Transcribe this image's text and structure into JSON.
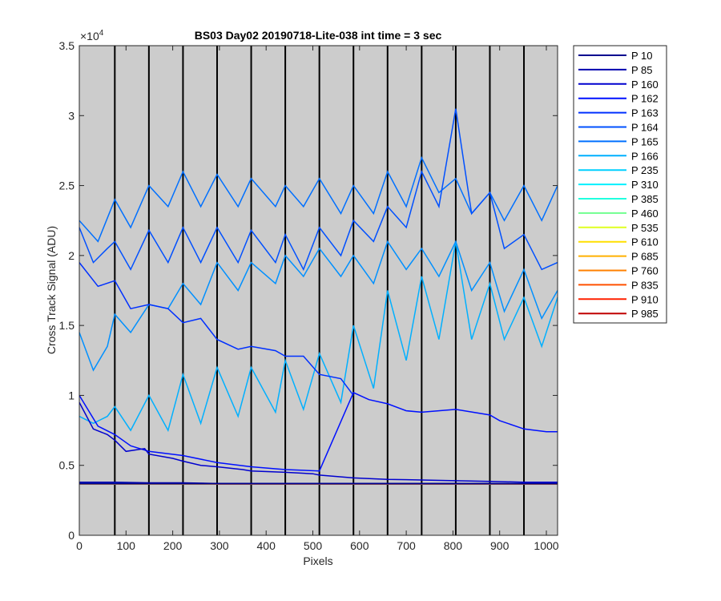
{
  "chart_data": {
    "type": "line",
    "title": "BS03 Day02 20190718-Lite-038 int time = 3 sec",
    "xlabel": "Pixels",
    "ylabel": "Cross Track Signal (ADU)",
    "y_exponent_label": "×10",
    "y_exponent_power": "4",
    "xlim": [
      0,
      1024
    ],
    "ylim": [
      0,
      35000
    ],
    "x_ticks": [
      0,
      100,
      200,
      300,
      400,
      500,
      600,
      700,
      800,
      900,
      1000
    ],
    "x_tick_labels": [
      "0",
      "100",
      "200",
      "300",
      "400",
      "500",
      "600",
      "700",
      "800",
      "900",
      "1000"
    ],
    "y_ticks": [
      0,
      5000,
      10000,
      15000,
      20000,
      25000,
      30000,
      35000
    ],
    "y_tick_labels": [
      "0",
      "0.5",
      "1",
      "1.5",
      "2",
      "2.5",
      "3",
      "3.5"
    ],
    "grid": false,
    "background_color": "#cccccc",
    "segment_boundaries": [
      0,
      76,
      149,
      222,
      295,
      368,
      441,
      514,
      587,
      660,
      733,
      806,
      879,
      952,
      1024
    ],
    "legend_position": "outside-right",
    "series": [
      {
        "name": "P 10",
        "color": "#00008f",
        "level": "baseline",
        "values": [
          [
            0,
            3700
          ],
          [
            1024,
            3700
          ]
        ]
      },
      {
        "name": "P 85",
        "color": "#0000af",
        "values": [
          [
            0,
            3800
          ],
          [
            76,
            3800
          ],
          [
            149,
            3750
          ],
          [
            222,
            3750
          ],
          [
            295,
            3700
          ],
          [
            368,
            3700
          ],
          [
            441,
            3700
          ],
          [
            514,
            3700
          ],
          [
            587,
            3700
          ],
          [
            660,
            3700
          ],
          [
            733,
            3700
          ],
          [
            806,
            3700
          ],
          [
            879,
            3700
          ],
          [
            952,
            3700
          ],
          [
            1024,
            3700
          ]
        ]
      },
      {
        "name": "P 160",
        "color": "#0000cf",
        "values": [
          [
            0,
            9500
          ],
          [
            30,
            7600
          ],
          [
            60,
            7200
          ],
          [
            76,
            6800
          ],
          [
            100,
            6000
          ],
          [
            140,
            6200
          ],
          [
            149,
            5800
          ],
          [
            200,
            5500
          ],
          [
            222,
            5300
          ],
          [
            260,
            5000
          ],
          [
            295,
            4900
          ],
          [
            350,
            4700
          ],
          [
            368,
            4600
          ],
          [
            441,
            4500
          ],
          [
            500,
            4400
          ],
          [
            514,
            4300
          ],
          [
            587,
            4100
          ],
          [
            660,
            4000
          ],
          [
            733,
            3950
          ],
          [
            806,
            3900
          ],
          [
            879,
            3850
          ],
          [
            952,
            3800
          ],
          [
            1024,
            3800
          ]
        ]
      },
      {
        "name": "P 162",
        "color": "#0010ff",
        "values": [
          [
            0,
            10000
          ],
          [
            40,
            7800
          ],
          [
            76,
            7200
          ],
          [
            110,
            6400
          ],
          [
            149,
            6000
          ],
          [
            222,
            5700
          ],
          [
            295,
            5200
          ],
          [
            368,
            4900
          ],
          [
            441,
            4700
          ],
          [
            514,
            4600
          ],
          [
            587,
            10200
          ],
          [
            620,
            9700
          ],
          [
            660,
            9400
          ],
          [
            700,
            8900
          ],
          [
            733,
            8800
          ],
          [
            806,
            9000
          ],
          [
            879,
            8600
          ],
          [
            900,
            8200
          ],
          [
            952,
            7600
          ],
          [
            1000,
            7400
          ],
          [
            1024,
            7400
          ]
        ]
      },
      {
        "name": "P 163",
        "color": "#0030ff",
        "values": [
          [
            0,
            19500
          ],
          [
            40,
            17800
          ],
          [
            76,
            18200
          ],
          [
            110,
            16200
          ],
          [
            149,
            16500
          ],
          [
            190,
            16200
          ],
          [
            222,
            15200
          ],
          [
            260,
            15500
          ],
          [
            295,
            14000
          ],
          [
            340,
            13300
          ],
          [
            368,
            13500
          ],
          [
            420,
            13200
          ],
          [
            441,
            12800
          ],
          [
            480,
            12800
          ],
          [
            514,
            11500
          ],
          [
            560,
            11200
          ],
          [
            587,
            10000
          ]
        ]
      },
      {
        "name": "P 164",
        "color": "#0050ff",
        "values": [
          [
            0,
            22000
          ],
          [
            30,
            19500
          ],
          [
            60,
            20500
          ],
          [
            76,
            21000
          ],
          [
            110,
            19000
          ],
          [
            149,
            21800
          ],
          [
            190,
            19500
          ],
          [
            222,
            22000
          ],
          [
            260,
            19500
          ],
          [
            295,
            22000
          ],
          [
            340,
            19500
          ],
          [
            368,
            21800
          ],
          [
            420,
            19500
          ],
          [
            441,
            21500
          ],
          [
            480,
            19000
          ],
          [
            514,
            22000
          ],
          [
            560,
            20000
          ],
          [
            587,
            22500
          ],
          [
            630,
            21000
          ],
          [
            660,
            23500
          ],
          [
            700,
            22000
          ],
          [
            733,
            26000
          ],
          [
            770,
            23500
          ],
          [
            806,
            30500
          ],
          [
            840,
            23000
          ],
          [
            879,
            24500
          ],
          [
            910,
            20500
          ],
          [
            952,
            21500
          ],
          [
            990,
            19000
          ],
          [
            1024,
            19500
          ]
        ]
      },
      {
        "name": "P 165",
        "color": "#0070ff",
        "values": [
          [
            0,
            22500
          ],
          [
            40,
            21000
          ],
          [
            76,
            24000
          ],
          [
            110,
            22000
          ],
          [
            149,
            25000
          ],
          [
            190,
            23500
          ],
          [
            222,
            26000
          ],
          [
            260,
            23500
          ],
          [
            295,
            25800
          ],
          [
            340,
            23500
          ],
          [
            368,
            25500
          ],
          [
            420,
            23500
          ],
          [
            441,
            25000
          ],
          [
            480,
            23500
          ],
          [
            514,
            25500
          ],
          [
            560,
            23000
          ],
          [
            587,
            25000
          ],
          [
            630,
            23000
          ],
          [
            660,
            26000
          ],
          [
            700,
            23500
          ],
          [
            733,
            27000
          ],
          [
            770,
            24500
          ],
          [
            806,
            25500
          ],
          [
            840,
            23000
          ],
          [
            879,
            24500
          ],
          [
            910,
            22500
          ],
          [
            952,
            25000
          ],
          [
            990,
            22500
          ],
          [
            1024,
            25000
          ]
        ]
      },
      {
        "name": "P 166",
        "color": "#0090ff",
        "values": [
          [
            0,
            14500
          ],
          [
            30,
            11800
          ],
          [
            60,
            13500
          ],
          [
            76,
            15800
          ],
          [
            110,
            14500
          ],
          [
            149,
            16500
          ],
          [
            190,
            16200
          ],
          [
            222,
            18000
          ],
          [
            260,
            16500
          ],
          [
            295,
            19500
          ],
          [
            340,
            17500
          ],
          [
            368,
            19500
          ],
          [
            420,
            18000
          ],
          [
            441,
            20000
          ],
          [
            480,
            18500
          ],
          [
            514,
            20500
          ],
          [
            560,
            18500
          ],
          [
            587,
            20000
          ],
          [
            630,
            18000
          ],
          [
            660,
            21000
          ],
          [
            700,
            19000
          ],
          [
            733,
            20500
          ],
          [
            770,
            18500
          ],
          [
            806,
            21000
          ],
          [
            840,
            17500
          ],
          [
            879,
            19500
          ],
          [
            910,
            16000
          ],
          [
            952,
            19000
          ],
          [
            990,
            15500
          ],
          [
            1024,
            17500
          ]
        ]
      },
      {
        "name": "P 235",
        "color": "#00b0ff",
        "values": [
          [
            0,
            8500
          ],
          [
            30,
            8000
          ],
          [
            60,
            8500
          ],
          [
            76,
            9200
          ],
          [
            110,
            7500
          ],
          [
            149,
            10000
          ],
          [
            190,
            7500
          ],
          [
            222,
            11500
          ],
          [
            260,
            8000
          ],
          [
            295,
            12000
          ],
          [
            340,
            8500
          ],
          [
            368,
            12000
          ],
          [
            420,
            8800
          ],
          [
            441,
            12500
          ],
          [
            480,
            9000
          ],
          [
            514,
            13000
          ],
          [
            560,
            9500
          ],
          [
            587,
            15000
          ],
          [
            630,
            10500
          ],
          [
            660,
            17500
          ],
          [
            700,
            12500
          ],
          [
            733,
            18500
          ],
          [
            770,
            14000
          ],
          [
            806,
            21000
          ],
          [
            840,
            14000
          ],
          [
            879,
            18000
          ],
          [
            910,
            14000
          ],
          [
            952,
            17000
          ],
          [
            990,
            13500
          ],
          [
            1024,
            17000
          ]
        ]
      },
      {
        "name": "P 310",
        "color": "#00d0ff",
        "level": "baseline",
        "values": [
          [
            0,
            3700
          ],
          [
            1024,
            3700
          ]
        ]
      },
      {
        "name": "P 385",
        "color": "#00f0ff",
        "level": "baseline",
        "values": [
          [
            0,
            3700
          ],
          [
            1024,
            3700
          ]
        ]
      },
      {
        "name": "P 460",
        "color": "#10ffef",
        "level": "baseline",
        "values": [
          [
            0,
            3700
          ],
          [
            1024,
            3700
          ]
        ]
      },
      {
        "name": "P 535",
        "color": "#30ffcf",
        "level": "baseline",
        "values": [
          [
            0,
            3700
          ],
          [
            1024,
            3700
          ]
        ]
      },
      {
        "name": "P 610",
        "color": "#50ffaf",
        "level": "baseline",
        "values": [
          [
            0,
            3700
          ],
          [
            1024,
            3700
          ]
        ]
      },
      {
        "name": "P 685",
        "color": "#70ff8f",
        "level": "baseline",
        "values": [
          [
            0,
            3700
          ],
          [
            1024,
            3700
          ]
        ]
      },
      {
        "name": "P 760",
        "color": "#90ff6f",
        "level": "baseline",
        "values": [
          [
            0,
            3700
          ],
          [
            1024,
            3700
          ]
        ]
      },
      {
        "name": "P 835",
        "color": "#b0ff4f",
        "level": "baseline",
        "values": [
          [
            0,
            3700
          ],
          [
            1024,
            3700
          ]
        ]
      },
      {
        "name": "P 910",
        "color": "#d0ff2f",
        "level": "baseline",
        "values": [
          [
            0,
            3700
          ],
          [
            1024,
            3700
          ]
        ]
      },
      {
        "name": "P 985",
        "color": "#c00000",
        "level": "baseline",
        "values": [
          [
            0,
            3650
          ],
          [
            1024,
            3650
          ]
        ]
      }
    ],
    "legend_colors": [
      "#00008f",
      "#0000af",
      "#0000cf",
      "#0010ff",
      "#0030ff",
      "#0050ff",
      "#0070ff",
      "#00b0ff",
      "#00d0ff",
      "#00f0ff",
      "#20ffdf",
      "#70ff8f",
      "#dfff20",
      "#ffdf00",
      "#ffb000",
      "#ff8000",
      "#ff5000",
      "#ff2000",
      "#c00000"
    ]
  }
}
